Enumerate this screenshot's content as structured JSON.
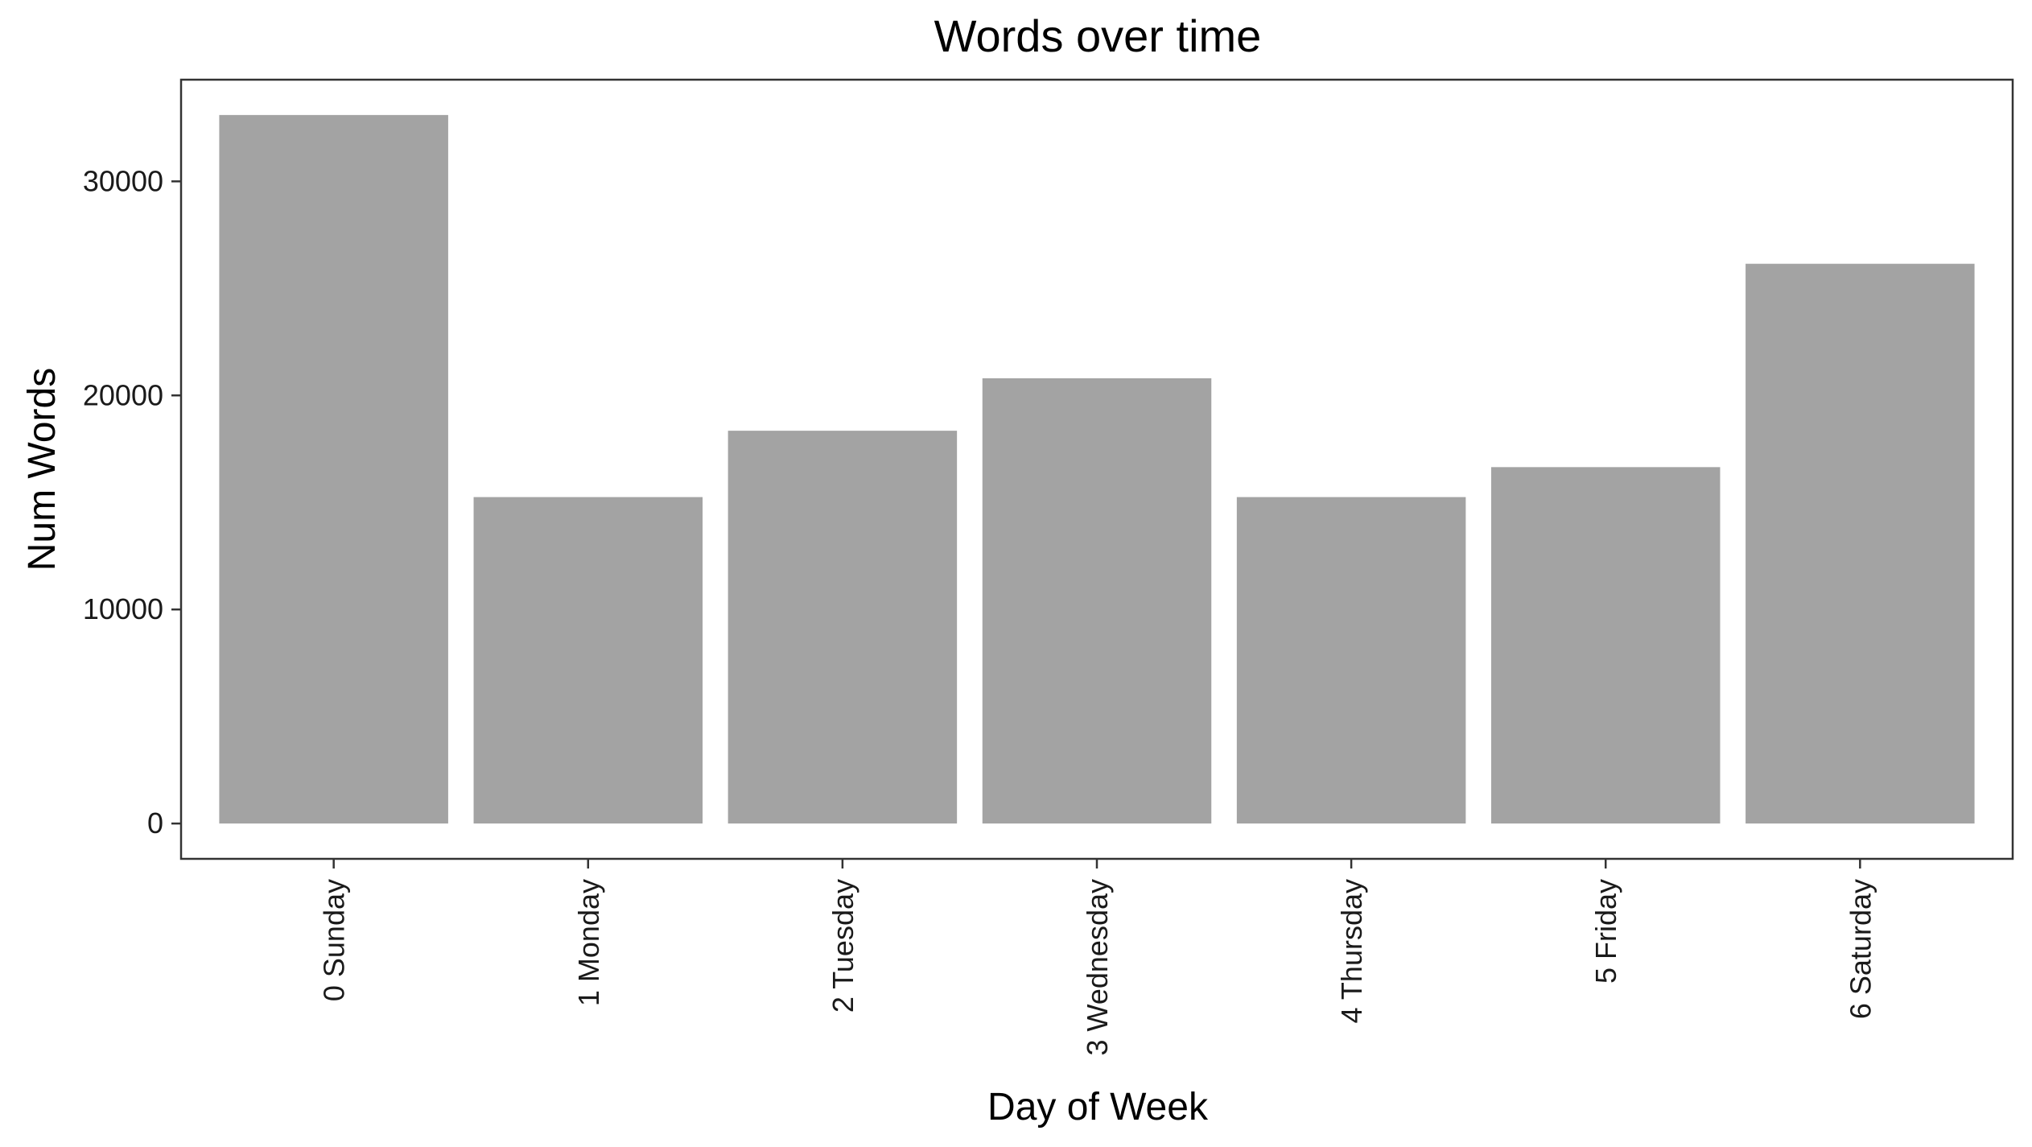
{
  "chart_data": {
    "type": "bar",
    "title": "Words over time",
    "xlabel": "Day of Week",
    "ylabel": "Num Words",
    "categories": [
      "0 Sunday",
      "1 Monday",
      "2 Tuesday",
      "3 Wednesday",
      "4 Thursday",
      "5 Friday",
      "6 Saturday"
    ],
    "values": [
      33100,
      15250,
      18350,
      20800,
      15250,
      16650,
      26150
    ],
    "ylim": [
      -1650,
      34750
    ],
    "yticks": [
      0,
      10000,
      20000,
      30000
    ],
    "ytick_labels": [
      "0",
      "10000",
      "20000",
      "30000"
    ],
    "grid": false,
    "legend": "none",
    "bar_color": "#a3a3a3",
    "axis_color": "#333333"
  }
}
